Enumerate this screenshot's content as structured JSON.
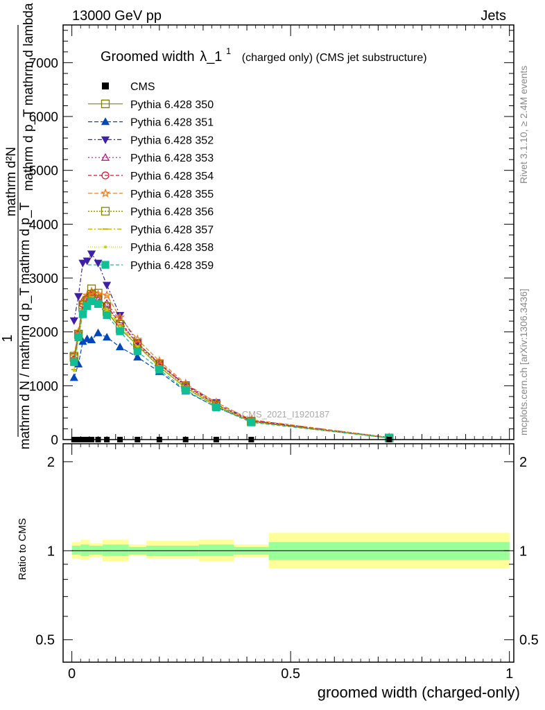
{
  "header": {
    "left": "13000 GeV pp",
    "right": "Jets"
  },
  "side": {
    "rivet": "Rivet 3.1.10, ≥ 2.4M events",
    "mcplots": "mcplots.cern.ch [arXiv:1306.3436]"
  },
  "watermark": "CMS_2021_I1920187",
  "chart_data": {
    "type": "line",
    "title": "Groomed width λ_1¹ (charged only) (CMS jet substructure)",
    "title_main": "Groomed width",
    "title_symbol": "λ_1",
    "title_sup": "1",
    "title_rest": "(charged only) (CMS jet substructure)",
    "xlabel": "groomed width (charged-only)",
    "ylabel_main": {
      "one": "1",
      "den": "mathrm d N / mathrm d p_T mathrm d p_T",
      "num_top": "mathrm d²N",
      "num_bottom": "mathrm d p_T mathrm d lambda"
    },
    "ylabel_ratio": "Ratio to CMS",
    "xlim": [
      -0.02,
      1.01
    ],
    "ylim_main": [
      0,
      7700
    ],
    "ylim_ratio": [
      0.42,
      2.3
    ],
    "log_x": false,
    "log_y_ratio": true,
    "x_ticks": [
      {
        "v": 0,
        "label": "0"
      },
      {
        "v": 0.5,
        "label": "0.5"
      },
      {
        "v": 1,
        "label": "1"
      }
    ],
    "y_ticks_main": [
      {
        "v": 0,
        "label": "0"
      },
      {
        "v": 1000,
        "label": "1000"
      },
      {
        "v": 2000,
        "label": "2000"
      },
      {
        "v": 3000,
        "label": "3000"
      },
      {
        "v": 4000,
        "label": "4000"
      },
      {
        "v": 5000,
        "label": "5000"
      },
      {
        "v": 6000,
        "label": "6000"
      },
      {
        "v": 7000,
        "label": "7000"
      }
    ],
    "y_ticks_ratio": [
      {
        "v": 0.5,
        "label": "0.5"
      },
      {
        "v": 1,
        "label": "1"
      },
      {
        "v": 2,
        "label": "2"
      }
    ],
    "legend_position": "top-left",
    "x": [
      0.005,
      0.015,
      0.025,
      0.035,
      0.045,
      0.06,
      0.08,
      0.11,
      0.15,
      0.2,
      0.26,
      0.33,
      0.41,
      0.725
    ],
    "data_series": {
      "name": "CMS",
      "y": [
        0,
        0,
        0,
        0,
        0,
        0,
        0,
        0,
        0,
        0,
        0,
        0,
        0,
        0
      ]
    },
    "ratio_bands": [
      {
        "x0": 0.0,
        "x1": 0.02,
        "inner": [
          0.97,
          1.04
        ],
        "outer": [
          0.94,
          1.07
        ]
      },
      {
        "x0": 0.02,
        "x1": 0.04,
        "inner": [
          0.96,
          1.05
        ],
        "outer": [
          0.93,
          1.09
        ]
      },
      {
        "x0": 0.04,
        "x1": 0.07,
        "inner": [
          0.97,
          1.04
        ],
        "outer": [
          0.95,
          1.06
        ]
      },
      {
        "x0": 0.07,
        "x1": 0.13,
        "inner": [
          0.96,
          1.05
        ],
        "outer": [
          0.92,
          1.09
        ]
      },
      {
        "x0": 0.13,
        "x1": 0.17,
        "inner": [
          0.97,
          1.03
        ],
        "outer": [
          0.96,
          1.05
        ]
      },
      {
        "x0": 0.17,
        "x1": 0.29,
        "inner": [
          0.96,
          1.04
        ],
        "outer": [
          0.94,
          1.08
        ]
      },
      {
        "x0": 0.29,
        "x1": 0.37,
        "inner": [
          0.96,
          1.05
        ],
        "outer": [
          0.92,
          1.09
        ]
      },
      {
        "x0": 0.37,
        "x1": 0.45,
        "inner": [
          0.97,
          1.03
        ],
        "outer": [
          0.95,
          1.05
        ]
      },
      {
        "x0": 0.45,
        "x1": 1.0,
        "inner": [
          0.93,
          1.07
        ],
        "outer": [
          0.87,
          1.15
        ]
      }
    ],
    "series": [
      {
        "name": "Pythia 6.428 350",
        "color": "#808000",
        "dash": "",
        "marker": "square-open",
        "y": [
          1550,
          1960,
          2450,
          2580,
          2800,
          2720,
          2380,
          2060,
          1750,
          1350,
          960,
          620,
          330,
          30
        ]
      },
      {
        "name": "Pythia 6.428 351",
        "color": "#0047bb",
        "dash": "6,3",
        "marker": "triangle-up",
        "y": [
          1150,
          1400,
          1820,
          1870,
          1850,
          1980,
          1900,
          1720,
          1530,
          1260,
          900,
          600,
          340,
          30
        ]
      },
      {
        "name": "Pythia 6.428 352",
        "color": "#3f1fa8",
        "dash": "6,3,2,3",
        "marker": "triangle-down",
        "y": [
          2210,
          2660,
          3280,
          3320,
          3450,
          3280,
          2870,
          2310,
          1800,
          1400,
          1020,
          690,
          360,
          40
        ]
      },
      {
        "name": "Pythia 6.428 353",
        "color": "#c0107e",
        "dash": "2,3",
        "marker": "triangle-open",
        "y": [
          1500,
          1960,
          2580,
          2640,
          2730,
          2600,
          2530,
          2220,
          1760,
          1400,
          1000,
          650,
          340,
          30
        ]
      },
      {
        "name": "Pythia 6.428 354",
        "color": "#e0102b",
        "dash": "5,3",
        "marker": "circle-open",
        "y": [
          1480,
          1950,
          2520,
          2620,
          2680,
          2620,
          2480,
          2170,
          1790,
          1420,
          1010,
          660,
          350,
          30
        ]
      },
      {
        "name": "Pythia 6.428 355",
        "color": "#f07a14",
        "dash": "6,3",
        "marker": "star-open",
        "y": [
          1560,
          2000,
          2560,
          2680,
          2750,
          2700,
          2680,
          2270,
          1860,
          1460,
          1040,
          690,
          370,
          40
        ]
      },
      {
        "name": "Pythia 6.428 356",
        "color": "#808000",
        "dash": "2,2",
        "marker": "square-open",
        "y": [
          1530,
          1950,
          2500,
          2590,
          2700,
          2610,
          2470,
          2140,
          1790,
          1400,
          980,
          650,
          340,
          30
        ]
      },
      {
        "name": "Pythia 6.428 357",
        "color": "#c0b000",
        "dash": "6,3,2,3",
        "marker": "dash",
        "y": [
          1300,
          1900,
          2400,
          2540,
          2660,
          2550,
          2420,
          2120,
          1740,
          1370,
          960,
          630,
          330,
          30
        ]
      },
      {
        "name": "Pythia 6.428 358",
        "color": "#b8d40a",
        "dash": "1,2",
        "marker": "dot",
        "y": [
          1280,
          1880,
          2380,
          2520,
          2620,
          2530,
          2400,
          2100,
          1720,
          1360,
          950,
          620,
          330,
          30
        ]
      },
      {
        "name": "Pythia 6.428 359",
        "color": "#10bf94",
        "dash": "5,3",
        "marker": "square",
        "y": [
          1440,
          1900,
          2330,
          2480,
          2570,
          2520,
          2310,
          2010,
          1640,
          1300,
          920,
          600,
          320,
          30
        ]
      }
    ]
  }
}
